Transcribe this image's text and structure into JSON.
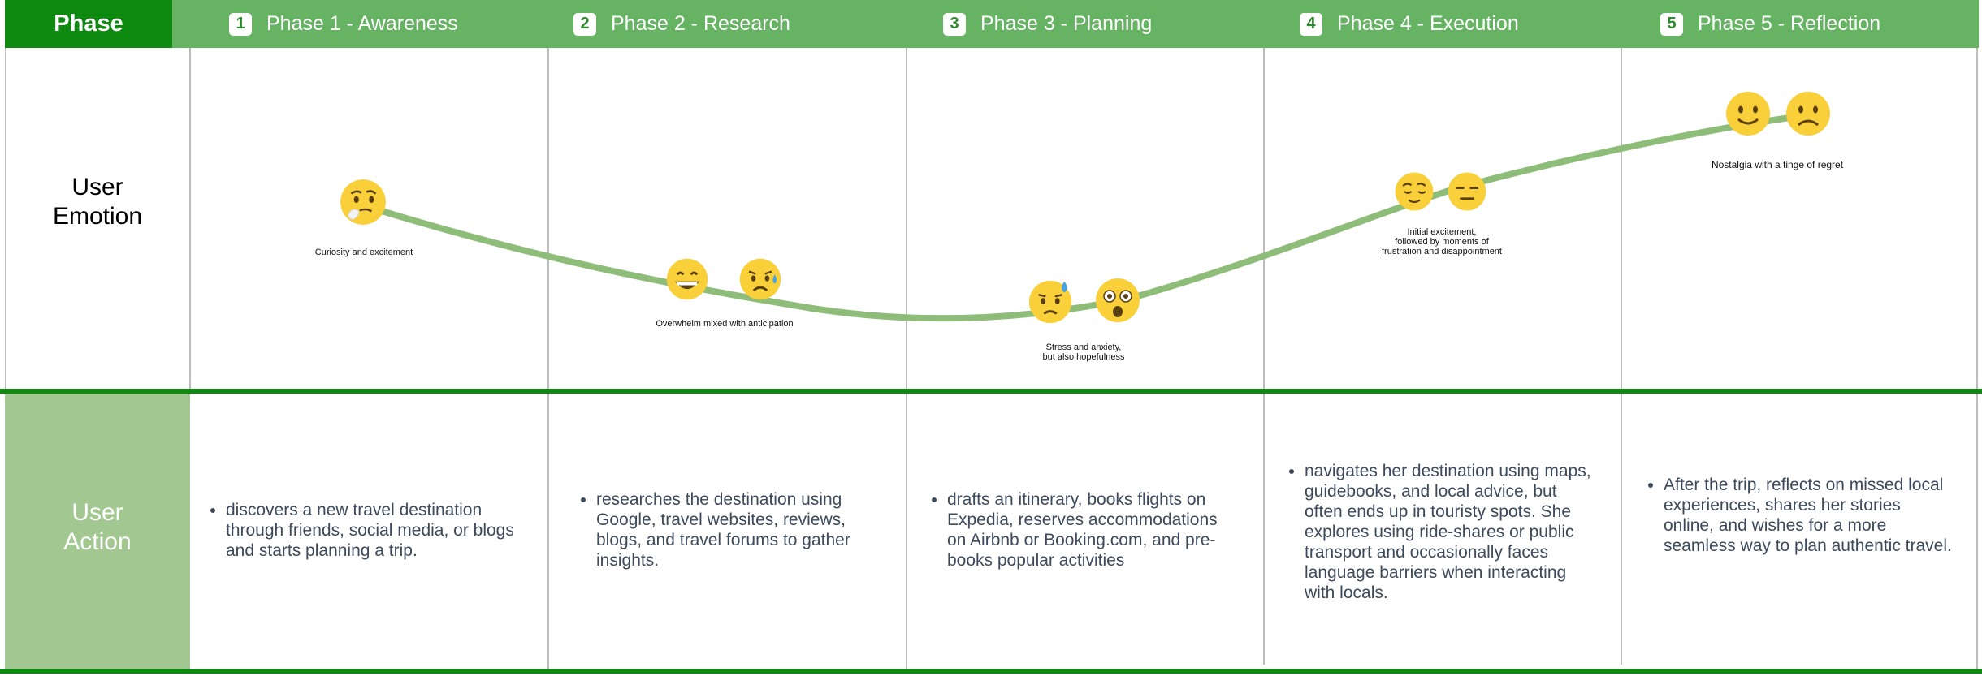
{
  "header": {
    "phase_label": "Phase",
    "phases": [
      {
        "number": "1",
        "title": "Phase 1 - Awareness"
      },
      {
        "number": "2",
        "title": "Phase 2 - Research"
      },
      {
        "number": "3",
        "title": "Phase 3 - Planning"
      },
      {
        "number": "4",
        "title": "Phase 4 - Execution"
      },
      {
        "number": "5",
        "title": "Phase 5 - Reflection"
      }
    ]
  },
  "rows": {
    "emotion_label_line1": "User",
    "emotion_label_line2": "Emotion",
    "action_label_line1": "User",
    "action_label_line2": "Action"
  },
  "emotions": [
    {
      "caption": "Curiosity and excitement",
      "icons": [
        "thinking-face-icon"
      ]
    },
    {
      "caption": "Overwhelm mixed with anticipation",
      "icons": [
        "grinning-face-icon",
        "sad-sweat-face-icon"
      ]
    },
    {
      "caption_line1": "Stress and anxiety,",
      "caption_line2": "but also hopefulness",
      "icons": [
        "sweat-face-icon",
        "astonished-face-icon"
      ]
    },
    {
      "caption_line1": "Initial excitement,",
      "caption_line2": "followed by moments of",
      "caption_line3": "frustration and disappointment",
      "icons": [
        "relieved-face-icon",
        "expressionless-face-icon"
      ]
    },
    {
      "caption": "Nostalgia with a tinge of regret",
      "icons": [
        "smiling-face-icon",
        "frowning-face-icon"
      ]
    }
  ],
  "actions": [
    "discovers a new travel destination through friends, social media, or blogs and starts planning a trip.",
    "researches the destination using Google, travel websites, reviews, blogs, and travel forums to gather insights.",
    "drafts an itinerary, books flights on Expedia, reserves accommodations on Airbnb or Booking.com, and pre-books popular activities",
    "navigates her destination using maps, guidebooks, and local advice, but often ends up in touristy spots. She explores using ride-shares or public transport and occasionally faces language barriers when interacting with locals.",
    "After the trip, reflects on missed local experiences, shares her stories online, and wishes for a more seamless way to plan authentic travel."
  ],
  "colors": {
    "header_dark": "#0f8a10",
    "header_light": "#66b363",
    "action_label_bg": "#a2c791",
    "curve": "#8dbd78",
    "emoji_yellow": "#f9cf3a"
  }
}
